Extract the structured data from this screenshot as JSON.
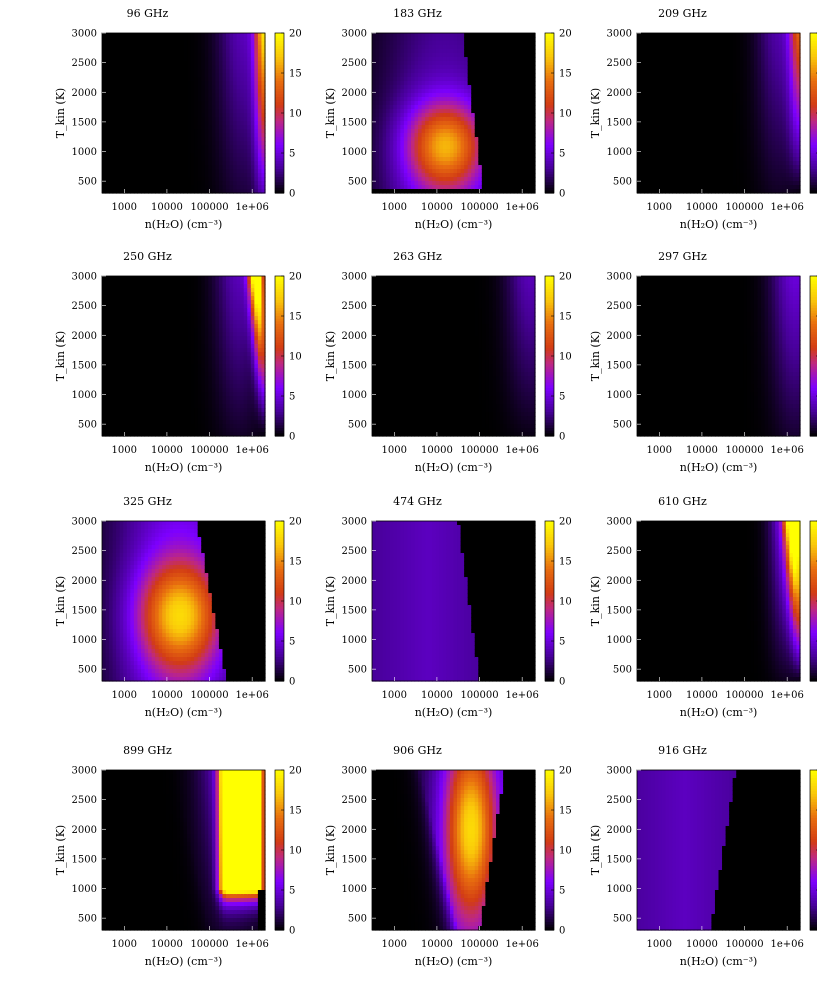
{
  "colors": {
    "scale": [
      "#000000",
      "#7a00ff",
      "#d4361a",
      "#e8700a",
      "#ffff00"
    ]
  },
  "common": {
    "xlabel": "n(H₂O) (cm⁻³)",
    "ylabel": "T_kin (K)",
    "xticks": [
      "1000",
      "10000",
      "100000",
      "1e+06"
    ],
    "yticks": [
      "500",
      "1000",
      "1500",
      "2000",
      "2500",
      "3000"
    ],
    "cticks": [
      "0",
      "5",
      "10",
      "15",
      "20"
    ]
  },
  "chart_data": [
    {
      "type": "heatmap",
      "title": "96 GHz",
      "xlabel": "n(H₂O) (cm⁻³)",
      "ylabel": "T_kin (K)",
      "xlim": [
        300,
        2000000
      ],
      "ylim": [
        300,
        3000
      ],
      "zlim": [
        0,
        20
      ],
      "scale": "log-x",
      "peak": {
        "logn": 6.2,
        "T": 3000,
        "value": 17
      }
    },
    {
      "type": "heatmap",
      "title": "183 GHz",
      "xlabel": "n(H₂O) (cm⁻³)",
      "ylabel": "T_kin (K)",
      "xlim": [
        300,
        2000000
      ],
      "ylim": [
        300,
        3000
      ],
      "zlim": [
        0,
        20
      ],
      "scale": "log-x",
      "peak": {
        "logn": 4.2,
        "T": 1000,
        "value": 11
      }
    },
    {
      "type": "heatmap",
      "title": "209 GHz",
      "xlabel": "n(H₂O) (cm⁻³)",
      "ylabel": "T_kin (K)",
      "xlim": [
        300,
        2000000
      ],
      "ylim": [
        300,
        3000
      ],
      "zlim": [
        0,
        20
      ],
      "scale": "log-x",
      "peak": {
        "logn": 6.2,
        "T": 3000,
        "value": 12
      }
    },
    {
      "type": "heatmap",
      "title": "250 GHz",
      "xlabel": "n(H₂O) (cm⁻³)",
      "ylabel": "T_kin (K)",
      "xlim": [
        300,
        2000000
      ],
      "ylim": [
        300,
        3000
      ],
      "zlim": [
        0,
        20
      ],
      "scale": "log-x",
      "peak": {
        "logn": 6.2,
        "T": 3000,
        "value": 22
      }
    },
    {
      "type": "heatmap",
      "title": "263 GHz",
      "xlabel": "n(H₂O) (cm⁻³)",
      "ylabel": "T_kin (K)",
      "xlim": [
        300,
        2000000
      ],
      "ylim": [
        300,
        3000
      ],
      "zlim": [
        0,
        20
      ],
      "scale": "log-x",
      "peak": {
        "logn": 6.2,
        "T": 3000,
        "value": 4
      }
    },
    {
      "type": "heatmap",
      "title": "297 GHz",
      "xlabel": "n(H₂O) (cm⁻³)",
      "ylabel": "T_kin (K)",
      "xlim": [
        300,
        2000000
      ],
      "ylim": [
        300,
        3000
      ],
      "zlim": [
        0,
        20
      ],
      "scale": "log-x",
      "peak": {
        "logn": 6.2,
        "T": 3000,
        "value": 5
      }
    },
    {
      "type": "heatmap",
      "title": "325 GHz",
      "xlabel": "n(H₂O) (cm⁻³)",
      "ylabel": "T_kin (K)",
      "xlim": [
        300,
        2000000
      ],
      "ylim": [
        300,
        3000
      ],
      "zlim": [
        0,
        20
      ],
      "scale": "log-x",
      "peak": {
        "logn": 4.3,
        "T": 1500,
        "value": 12
      }
    },
    {
      "type": "heatmap",
      "title": "474 GHz",
      "xlabel": "n(H₂O) (cm⁻³)",
      "ylabel": "T_kin (K)",
      "xlim": [
        300,
        2000000
      ],
      "ylim": [
        300,
        3000
      ],
      "zlim": [
        0,
        20
      ],
      "scale": "log-x",
      "peak": {
        "logn": 3.5,
        "T": 2000,
        "value": 4
      }
    },
    {
      "type": "heatmap",
      "title": "610 GHz",
      "xlabel": "n(H₂O) (cm⁻³)",
      "ylabel": "T_kin (K)",
      "xlim": [
        300,
        2000000
      ],
      "ylim": [
        300,
        3000
      ],
      "zlim": [
        0,
        20
      ],
      "scale": "log-x",
      "peak": {
        "logn": 6.2,
        "T": 3000,
        "value": 22
      }
    },
    {
      "type": "heatmap",
      "title": "899 GHz",
      "xlabel": "n(H₂O) (cm⁻³)",
      "ylabel": "T_kin (K)",
      "xlim": [
        300,
        2000000
      ],
      "ylim": [
        300,
        3000
      ],
      "zlim": [
        0,
        20
      ],
      "scale": "log-x",
      "peak": {
        "logn": 5.8,
        "T": 2500,
        "value": 24
      }
    },
    {
      "type": "heatmap",
      "title": "906 GHz",
      "xlabel": "n(H₂O) (cm⁻³)",
      "ylabel": "T_kin (K)",
      "xlim": [
        300,
        2000000
      ],
      "ylim": [
        300,
        3000
      ],
      "zlim": [
        0,
        20
      ],
      "scale": "log-x",
      "peak": {
        "logn": 4.8,
        "T": 2000,
        "value": 13
      }
    },
    {
      "type": "heatmap",
      "title": "916 GHz",
      "xlabel": "n(H₂O) (cm⁻³)",
      "ylabel": "T_kin (K)",
      "xlim": [
        300,
        2000000
      ],
      "ylim": [
        300,
        3000
      ],
      "zlim": [
        0,
        20
      ],
      "scale": "log-x",
      "peak": {
        "logn": 3.4,
        "T": 1500,
        "value": 4
      }
    }
  ]
}
